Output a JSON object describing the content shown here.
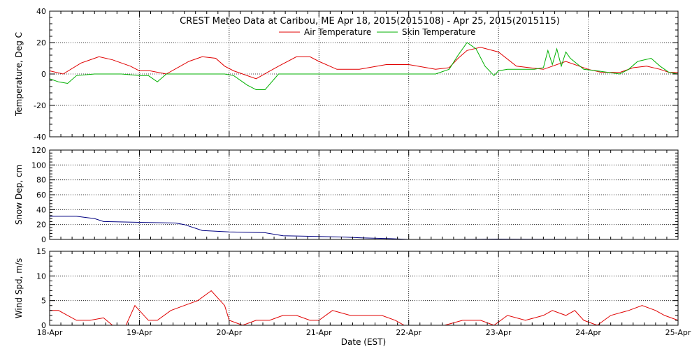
{
  "chart_data": {
    "title": "CREST Meteo Data at Caribou, ME   Apr 18, 2015(2015108) - Apr 25, 2015(2015115)",
    "xlabel": "Date (EST)",
    "x_ticks": [
      "18-Apr",
      "19-Apr",
      "20-Apr",
      "21-Apr",
      "22-Apr",
      "23-Apr",
      "24-Apr",
      "25-Apr"
    ],
    "x_range_days": [
      0,
      7
    ],
    "grid": true,
    "panels": [
      {
        "type": "line",
        "ylabel": "Temperature, Deg C",
        "ylim": [
          -40,
          40
        ],
        "yticks": [
          -40,
          -20,
          0,
          20,
          40
        ],
        "legend": "top-center",
        "series": [
          {
            "name": "Air Temperature",
            "color": "#e00000",
            "x": [
              0,
              0.15,
              0.35,
              0.55,
              0.7,
              0.9,
              1.0,
              1.12,
              1.3,
              1.55,
              1.7,
              1.85,
              1.95,
              2.05,
              2.15,
              2.3,
              2.55,
              2.75,
              2.9,
              3.0,
              3.2,
              3.45,
              3.55,
              3.75,
              4.0,
              4.1,
              4.3,
              4.45,
              4.55,
              4.65,
              4.8,
              5.0,
              5.2,
              5.5,
              5.6,
              5.75,
              6.0,
              6.15,
              6.35,
              6.5,
              6.65,
              6.8,
              6.9,
              7.0
            ],
            "y": [
              2,
              0,
              7,
              11,
              9,
              5,
              2,
              2,
              0,
              8,
              11,
              10,
              5,
              2,
              0,
              -3,
              5,
              11,
              11,
              8,
              3,
              3,
              4,
              6,
              6,
              5,
              3,
              4,
              10,
              15,
              17,
              14,
              5,
              3,
              5,
              8,
              3,
              1,
              1,
              4,
              5,
              3,
              1,
              1
            ]
          },
          {
            "name": "Skin Temperature",
            "color": "#00b000",
            "x": [
              0,
              0.1,
              0.2,
              0.3,
              0.5,
              0.8,
              1.0,
              1.1,
              1.2,
              1.3,
              1.5,
              1.8,
              1.95,
              2.05,
              2.2,
              2.3,
              2.4,
              2.55,
              3.0,
              4.0,
              4.1,
              4.3,
              4.45,
              4.55,
              4.65,
              4.75,
              4.85,
              4.95,
              5.0,
              5.1,
              5.4,
              5.5,
              5.55,
              5.6,
              5.65,
              5.7,
              5.75,
              5.8,
              5.95,
              6.1,
              6.35,
              6.45,
              6.55,
              6.7,
              6.8,
              6.9,
              7.0
            ],
            "y": [
              -3,
              -5,
              -6,
              -1,
              0,
              0,
              -1,
              -1,
              -5,
              0,
              0,
              0,
              0,
              -1,
              -7,
              -10,
              -10,
              0,
              0,
              0,
              0,
              0,
              3,
              12,
              20,
              16,
              5,
              -1,
              2,
              3,
              3,
              4,
              15,
              6,
              16,
              5,
              14,
              10,
              3,
              2,
              0,
              3,
              8,
              10,
              5,
              1,
              0
            ]
          }
        ]
      },
      {
        "type": "line",
        "ylabel": "Snow Dep, cm",
        "ylim": [
          0,
          120
        ],
        "yticks": [
          0,
          20,
          40,
          60,
          80,
          100,
          120
        ],
        "series": [
          {
            "name": "Snow Depth",
            "color": "#000080",
            "x": [
              0,
              0.3,
              0.5,
              0.6,
              1.0,
              1.4,
              1.5,
              1.7,
              2.0,
              2.4,
              2.6,
              3.0,
              3.3,
              3.5,
              3.8,
              4.0,
              4.5,
              5.0,
              6.0,
              7.0
            ],
            "y": [
              31,
              31,
              28,
              24,
              23,
              22,
              20,
              12,
              10,
              9,
              5,
              4,
              3,
              2,
              1,
              0,
              0,
              0.5,
              0,
              0
            ]
          }
        ]
      },
      {
        "type": "line",
        "ylabel": "Wind Spd, m/s",
        "ylim": [
          0,
          15
        ],
        "yticks": [
          0,
          5,
          10,
          15
        ],
        "series": [
          {
            "name": "Wind Speed",
            "color": "#e00000",
            "x": [
              0,
              0.1,
              0.2,
              0.3,
              0.45,
              0.6,
              0.7,
              0.85,
              0.95,
              1.0,
              1.1,
              1.2,
              1.35,
              1.5,
              1.65,
              1.8,
              1.95,
              2.0,
              2.15,
              2.3,
              2.45,
              2.6,
              2.75,
              2.9,
              3.0,
              3.15,
              3.35,
              3.55,
              3.7,
              3.85,
              3.95,
              4.0,
              4.15,
              4.4,
              4.6,
              4.8,
              4.95,
              5.1,
              5.3,
              5.5,
              5.6,
              5.75,
              5.85,
              5.95,
              6.1,
              6.25,
              6.45,
              6.6,
              6.75,
              6.85,
              7.0
            ],
            "y": [
              3,
              3,
              2,
              1,
              1,
              1.5,
              0,
              0,
              4,
              3,
              1,
              1,
              3,
              4,
              5,
              7,
              4,
              1,
              0,
              1,
              1,
              2,
              2,
              1,
              1,
              3,
              2,
              2,
              2,
              1,
              0,
              0,
              0,
              0,
              1,
              1,
              0,
              2,
              1,
              2,
              3,
              2,
              3,
              1,
              0,
              2,
              3,
              4,
              3,
              2,
              1
            ]
          }
        ]
      }
    ]
  }
}
